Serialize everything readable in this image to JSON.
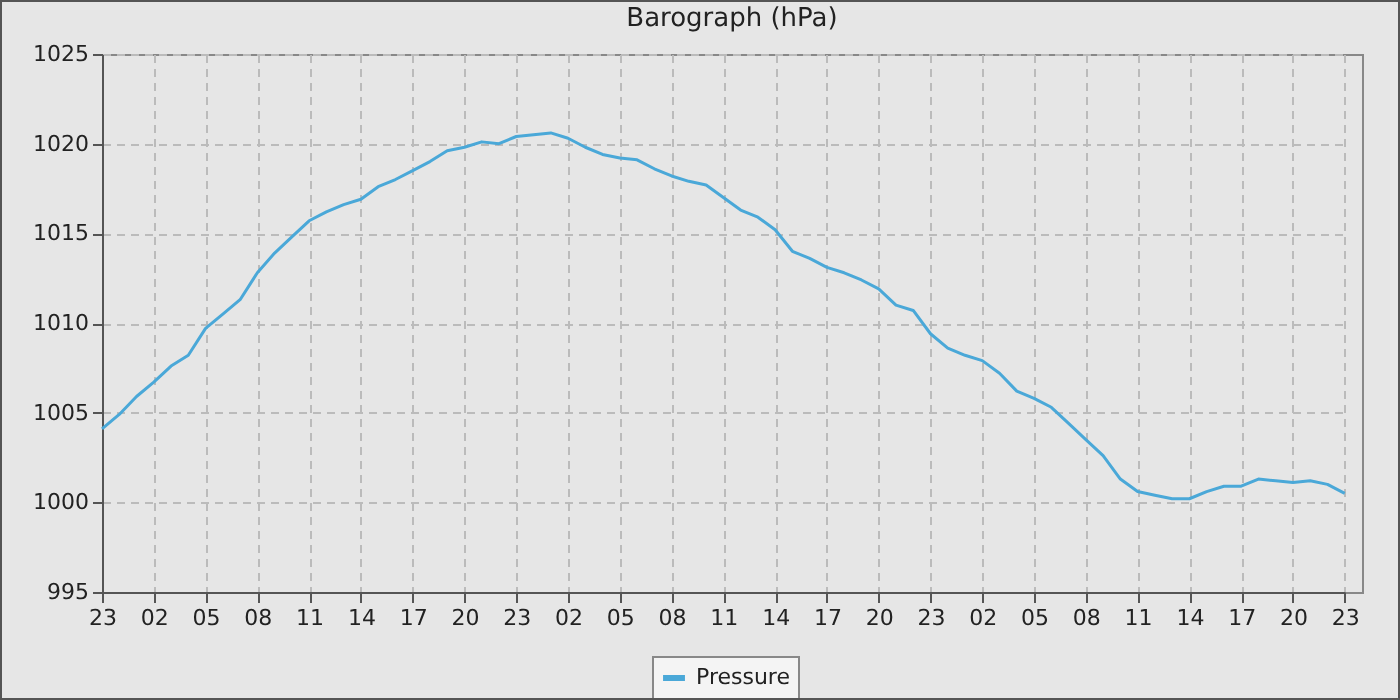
{
  "chart_data": {
    "type": "line",
    "title": "Barograph (hPa)",
    "categories": [
      "23",
      null,
      null,
      "02",
      null,
      null,
      "05",
      null,
      null,
      "08",
      null,
      null,
      "11",
      null,
      null,
      "14",
      null,
      null,
      "17",
      null,
      null,
      "20",
      null,
      null,
      "23",
      null,
      null,
      "02",
      null,
      null,
      "05",
      null,
      null,
      "08",
      null,
      null,
      "11",
      null,
      null,
      "14",
      null,
      null,
      "17",
      null,
      null,
      "20",
      null,
      null,
      "23",
      null,
      null,
      "02",
      null,
      null,
      "05",
      null,
      null,
      "08",
      null,
      null,
      "11",
      null,
      null,
      "14",
      null,
      null,
      "17",
      null,
      null,
      "20",
      null,
      null,
      "23"
    ],
    "series": [
      {
        "name": "Pressure",
        "color": "#4aa8d8",
        "values": [
          1004.1,
          1004.9,
          1005.9,
          1006.7,
          1007.6,
          1008.2,
          1009.7,
          1010.5,
          1011.3,
          1012.8,
          1013.9,
          1014.8,
          1015.7,
          1016.2,
          1016.6,
          1016.9,
          1017.6,
          1018,
          1018.5,
          1019,
          1019.6,
          1019.8,
          1020.1,
          1020,
          1020.4,
          1020.5,
          1020.6,
          1020.3,
          1019.8,
          1019.4,
          1019.2,
          1019.1,
          1018.6,
          1018.2,
          1017.9,
          1017.7,
          1017,
          1016.3,
          1015.9,
          1015.2,
          1014,
          1013.6,
          1013.1,
          1012.8,
          1012.4,
          1011.9,
          1011,
          1010.7,
          1009.4,
          1008.6,
          1008.2,
          1007.9,
          1007.2,
          1006.2,
          1005.8,
          1005.3,
          1004.4,
          1003.5,
          1002.6,
          1001.3,
          1000.6,
          1000.4,
          1000.2,
          1000.2,
          1000.6,
          1000.9,
          1000.9,
          1001.3,
          1001.2,
          1001.1,
          1001.2,
          1001,
          1000.5
        ]
      }
    ],
    "ylim": [
      995,
      1025
    ],
    "yticks": [
      995,
      1000,
      1005,
      1010,
      1015,
      1020,
      1025
    ],
    "grid": true,
    "legend": "bottom",
    "marker": "none",
    "line_style": "solid"
  }
}
